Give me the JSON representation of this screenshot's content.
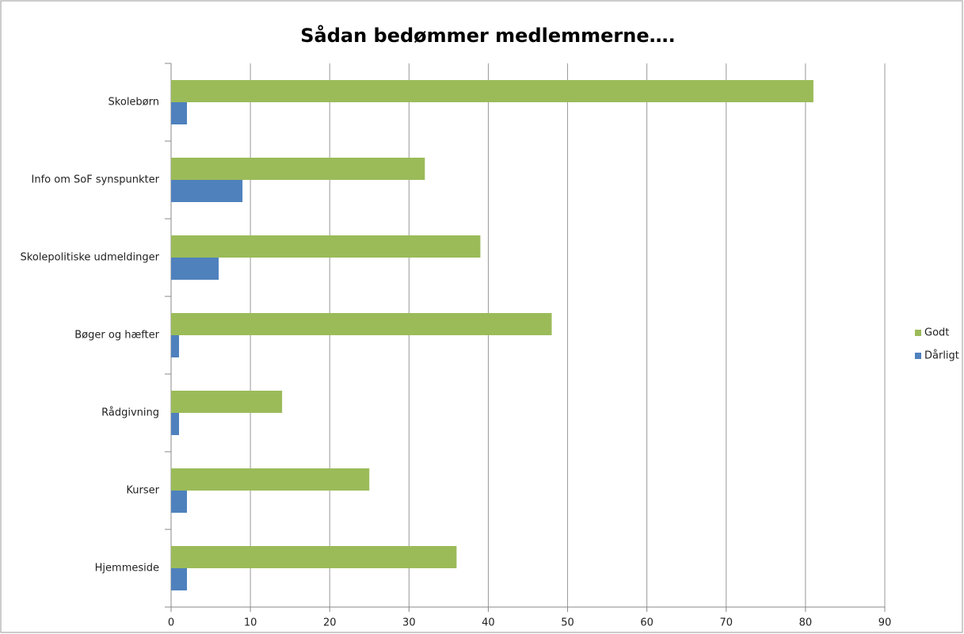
{
  "chart_data": {
    "type": "bar",
    "orientation": "horizontal",
    "title": "Sådan bedømmer medlemmerne….",
    "categories": [
      "Skolebørn",
      "Info om SoF synspunkter",
      "Skolepolitiske udmeldinger",
      "Bøger og hæfter",
      "Rådgivning",
      "Kurser",
      "Hjemmeside"
    ],
    "series": [
      {
        "name": "Godt",
        "color": "#9bbb59",
        "values": [
          81,
          32,
          39,
          48,
          14,
          25,
          36
        ]
      },
      {
        "name": "Dårligt",
        "color": "#4f81bd",
        "values": [
          2,
          9,
          6,
          1,
          1,
          2,
          2
        ]
      }
    ],
    "xlim": [
      0,
      90
    ],
    "xticks": [
      0,
      10,
      20,
      30,
      40,
      50,
      60,
      70,
      80,
      90
    ],
    "grid": true,
    "legend": "right"
  }
}
